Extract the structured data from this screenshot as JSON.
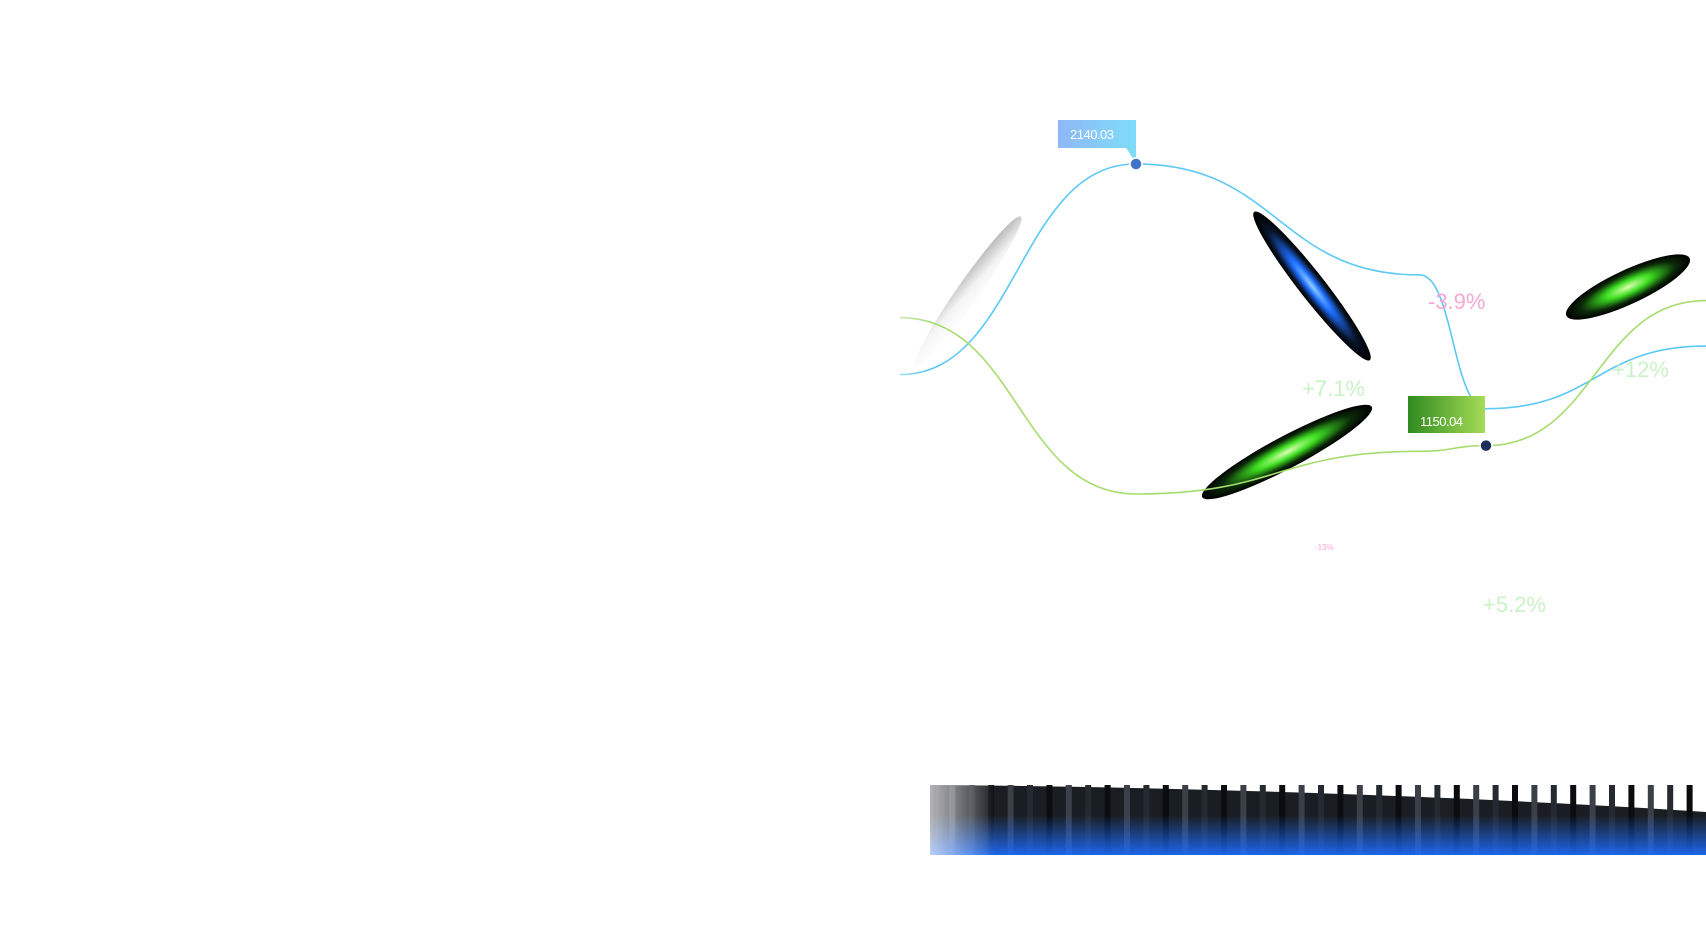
{
  "chart_data": {
    "type": "line",
    "title": "",
    "series": [
      {
        "color": "#5cc8f5",
        "values": [
          1400,
          2140.03,
          1750,
          1280,
          1500
        ]
      },
      {
        "color": "#a5dc6e",
        "values": [
          1600,
          980,
          1130,
          1150.04,
          1660
        ]
      }
    ],
    "callouts": [
      {
        "series": 0,
        "point": 1,
        "text": "2140.03",
        "fill_from": "#8fb8f8",
        "fill_to": "#7fdcf8",
        "marker": "#3f73c9"
      },
      {
        "series": 1,
        "point": 3,
        "text": "1150.04",
        "fill_from": "#2f8a1f",
        "fill_to": "#a6dc57",
        "marker": "#1d2f5c"
      }
    ],
    "percent_labels": [
      {
        "text": "-3.9%",
        "color": "#f7a8d2",
        "size": "large"
      },
      {
        "text": "+7.1%",
        "color": "#c9f2c5",
        "size": "large"
      },
      {
        "text": "+12%",
        "color": "#c9f2c5",
        "size": "large"
      },
      {
        "text": "+5.2%",
        "color": "#c9f2c5",
        "size": "large"
      },
      {
        "text": "-13%",
        "color": "#f7a8d2",
        "size": "tiny"
      }
    ],
    "glow_colors": {
      "blue": "#1e6dff",
      "green": "#4dff2e",
      "grey": "#c8c8c8"
    }
  }
}
